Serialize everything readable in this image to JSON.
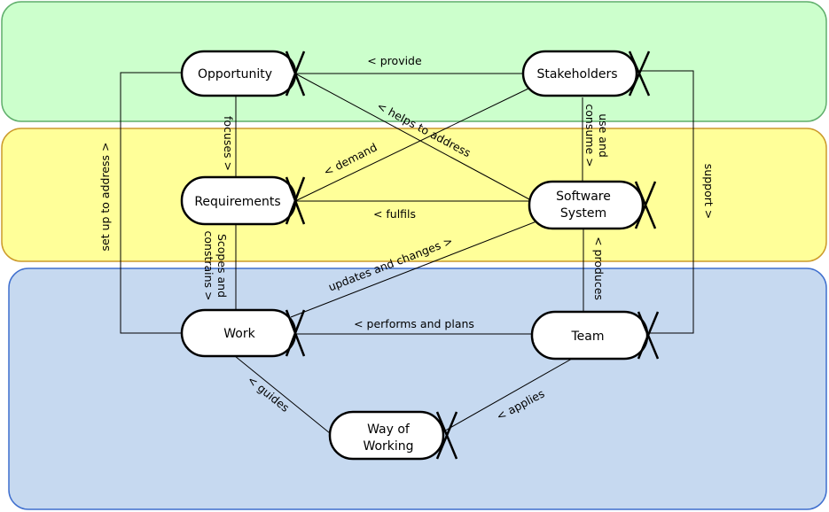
{
  "nodes": {
    "opportunity": {
      "lines": [
        "Opportunity"
      ]
    },
    "stakeholders": {
      "lines": [
        "Stakeholders"
      ]
    },
    "requirements": {
      "lines": [
        "Requirements"
      ]
    },
    "software_system": {
      "lines": [
        "Software",
        "System"
      ]
    },
    "work": {
      "lines": [
        "Work"
      ]
    },
    "team": {
      "lines": [
        "Team"
      ]
    },
    "way_of_working": {
      "lines": [
        "Way of",
        "Working"
      ]
    }
  },
  "edges": {
    "provide": {
      "lines": [
        "< provide"
      ]
    },
    "helps_to_address": {
      "lines": [
        "< helps to address"
      ]
    },
    "use_and_consume": {
      "lines": [
        "use and",
        "consume >"
      ]
    },
    "focuses": {
      "lines": [
        "focuses >"
      ]
    },
    "demand": {
      "lines": [
        "< demand"
      ]
    },
    "fulfils": {
      "lines": [
        "< fulfils"
      ]
    },
    "set_up_to_address": {
      "lines": [
        "set up to address >"
      ]
    },
    "support": {
      "lines": [
        "support >"
      ]
    },
    "scopes_and_constrains": {
      "lines": [
        "Scopes and",
        "constrains >"
      ]
    },
    "updates_and_changes": {
      "lines": [
        "updates and changes >"
      ]
    },
    "produces": {
      "lines": [
        "< produces"
      ]
    },
    "performs_and_plans": {
      "lines": [
        "< performs and plans"
      ]
    },
    "guides": {
      "lines": [
        "< guides"
      ]
    },
    "applies": {
      "lines": [
        "< applies"
      ]
    }
  },
  "colors": {
    "customer_area": "#ccffcc",
    "customer_border": "#5fae6b",
    "solution_area": "#ffff99",
    "solution_border": "#cc9a2a",
    "endeavor_area": "#c6d9f0",
    "endeavor_border": "#3f6fce",
    "line": "#000000"
  }
}
